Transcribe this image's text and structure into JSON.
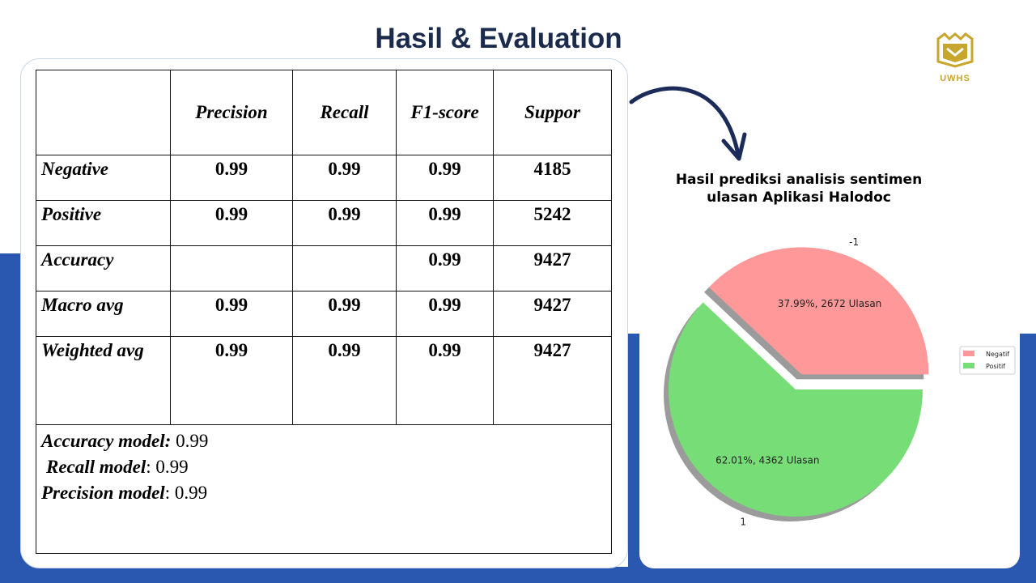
{
  "slide": {
    "title": "Hasil & Evaluation"
  },
  "logo": {
    "text": "UWHS"
  },
  "table": {
    "headers": [
      "",
      "Precision",
      "Recall",
      "F1-score",
      "Suppor"
    ],
    "rows": [
      [
        "Negative",
        "0.99",
        "0.99",
        "0.99",
        "4185"
      ],
      [
        "Positive",
        "0.99",
        "0.99",
        "0.99",
        "5242"
      ],
      [
        "Accuracy",
        "",
        "",
        "0.99",
        "9427"
      ],
      [
        "Macro avg",
        "0.99",
        "0.99",
        "0.99",
        "9427"
      ],
      [
        "Weighted avg",
        "0.99",
        "0.99",
        "0.99",
        "9427"
      ]
    ],
    "summary": [
      {
        "label": "Accuracy model:",
        "value": " 0.99"
      },
      {
        "label": "Recall model",
        "value": ": 0.99"
      },
      {
        "label": "Precision model",
        "value": ": 0.99"
      }
    ]
  },
  "colors": {
    "band": "#2a58b0",
    "title": "#1b2b4b",
    "negatif": "#ff9999",
    "positif": "#77dd77",
    "arrow": "#1b2b5a",
    "logo": "#c8a62c"
  },
  "chart_data": {
    "type": "pie",
    "title": [
      "Hasil prediksi analisis sentimen",
      "ulasan Aplikasi Halodoc"
    ],
    "slices": [
      {
        "category": "-1",
        "legend": "Negatif",
        "value": 2672,
        "percent": 37.99,
        "label": "37.99%, 2672 Ulasan",
        "color": "#ff9999",
        "exploded": true
      },
      {
        "category": "1",
        "legend": "Positif",
        "value": 4362,
        "percent": 62.01,
        "label": "62.01%, 4362 Ulasan",
        "color": "#77dd77",
        "exploded": false
      }
    ],
    "legend_position": "right",
    "shadow": true
  }
}
